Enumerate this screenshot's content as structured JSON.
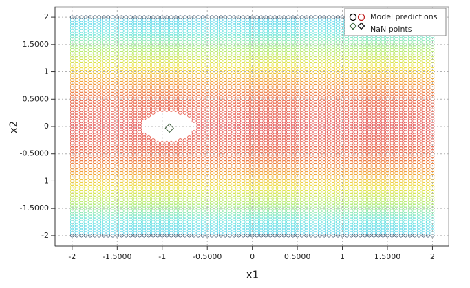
{
  "chart_data": {
    "type": "scatter",
    "xlabel": "x1",
    "ylabel": "x2",
    "xlim": [
      -2.19,
      2.18
    ],
    "ylim": [
      -2.19,
      2.19
    ],
    "xticks": [
      -2,
      {
        "value": -1.5,
        "label": "-1.5000"
      },
      -1,
      {
        "value": -0.5,
        "label": "-0.5000"
      },
      0,
      {
        "value": 0.5,
        "label": "0.5000"
      },
      1,
      {
        "value": 1.5,
        "label": "1.5000"
      },
      2
    ],
    "yticks": [
      -2,
      {
        "value": -1.5,
        "label": "-1.5000"
      },
      -1,
      {
        "value": -0.5,
        "label": "-0.5000"
      },
      0,
      {
        "value": 0.5,
        "label": "0.5000"
      },
      1,
      {
        "value": 1.5,
        "label": "1.5000"
      },
      2
    ],
    "grid": true,
    "legend": "upper right",
    "series": [
      {
        "name": "Model predictions",
        "marker": "circle",
        "x": [
          -2,
          -1.95,
          -1.9,
          -1.85,
          -1.8,
          -1.75,
          -1.7,
          -1.65,
          -1.6,
          -1.55,
          -1.5,
          -1.45,
          -1.4,
          -1.35,
          -1.3,
          -1.25,
          -1.2,
          -1.15,
          -1.1,
          -1.05,
          -1,
          -0.95,
          -0.9,
          -0.85,
          -0.8,
          -0.75,
          -0.7,
          -0.65,
          -0.6,
          -0.55,
          -0.5,
          -0.45,
          -0.4,
          -0.35,
          -0.3,
          -0.25,
          -0.2,
          -0.15,
          -0.1,
          -0.05,
          0,
          0.05,
          0.1,
          0.15,
          0.2,
          0.25,
          0.3,
          0.35,
          0.4,
          0.45,
          0.5,
          0.55,
          0.6,
          0.65,
          0.7,
          0.75,
          0.8,
          0.85,
          0.9,
          0.95,
          1,
          1.05,
          1.1,
          1.15,
          1.2,
          1.25,
          1.3,
          1.35,
          1.4,
          1.45,
          1.5,
          1.55,
          1.6,
          1.65,
          1.7,
          1.75,
          1.8,
          1.85,
          1.9,
          1.95,
          2
        ],
        "y": [
          -2,
          -1.95,
          -1.9,
          -1.85,
          -1.8,
          -1.75,
          -1.7,
          -1.65,
          -1.6,
          -1.55,
          -1.5,
          -1.45,
          -1.4,
          -1.35,
          -1.3,
          -1.25,
          -1.2,
          -1.15,
          -1.1,
          -1.05,
          -1,
          -0.95,
          -0.9,
          -0.85,
          -0.8,
          -0.75,
          -0.7,
          -0.65,
          -0.6,
          -0.55,
          -0.5,
          -0.45,
          -0.4,
          -0.35,
          -0.3,
          -0.25,
          -0.2,
          -0.15,
          -0.1,
          -0.05,
          0,
          0.05,
          0.1,
          0.15,
          0.2,
          0.25,
          0.3,
          0.35,
          0.4,
          0.45,
          0.5,
          0.55,
          0.6,
          0.65,
          0.7,
          0.75,
          0.8,
          0.85,
          0.9,
          0.95,
          1,
          1.05,
          1.1,
          1.15,
          1.2,
          1.25,
          1.3,
          1.35,
          1.4,
          1.45,
          1.5,
          1.55,
          1.6,
          1.65,
          1.7,
          1.75,
          1.8,
          1.85,
          1.9,
          1.95,
          2
        ],
        "missing": [
          [
            -0.25,
            -1.05,
            -0.85
          ],
          [
            -0.2,
            -1.1,
            -0.75
          ],
          [
            -0.15,
            -1.15,
            -0.7
          ],
          [
            -0.1,
            -1.2,
            -0.7
          ],
          [
            -0.05,
            -1.2,
            -0.65
          ],
          [
            0,
            -1.2,
            -0.65
          ],
          [
            0.05,
            -1.2,
            -0.65
          ],
          [
            0.1,
            -1.2,
            -0.7
          ],
          [
            0.15,
            -1.15,
            -0.7
          ],
          [
            0.2,
            -1.1,
            -0.75
          ],
          [
            0.25,
            -1.05,
            -0.85
          ]
        ],
        "color_stops": [
          [
            0,
            "#e03a3a"
          ],
          [
            0.5,
            "#e85a35"
          ],
          [
            0.8,
            "#f29a3a"
          ],
          [
            1.1,
            "#ecdf3a"
          ],
          [
            1.4,
            "#a8e85a"
          ],
          [
            1.7,
            "#52e0d8"
          ],
          [
            1.95,
            "#45d0ea"
          ],
          [
            2,
            "#2a4a66"
          ]
        ]
      },
      {
        "name": "NaN points",
        "marker": "diamond",
        "color": "#3a5a3a",
        "x": [
          -0.92
        ],
        "values": [
          -0.03
        ]
      }
    ]
  }
}
